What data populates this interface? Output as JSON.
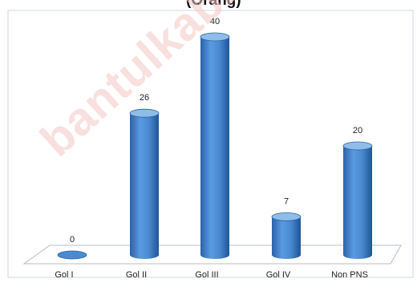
{
  "header": {
    "title_fragment": "(Orang)"
  },
  "watermark": "bantulkab.bps.go.id",
  "colors": {
    "bar": "#4a8ad0",
    "bar_dark": "#2a62a8",
    "bar_light": "#8fbde9",
    "frame": "#cfd7e3"
  },
  "chart_data": {
    "type": "bar",
    "categories": [
      "Gol I",
      "Gol II",
      "Gol III",
      "Gol IV",
      "Non PNS"
    ],
    "values": [
      0,
      26,
      40,
      7,
      20
    ],
    "data_labels": [
      "0",
      "26",
      "40",
      "7",
      "20"
    ],
    "ylim": [
      0,
      40
    ],
    "grid": false,
    "legend": "none",
    "style": "3d-cylinder"
  }
}
